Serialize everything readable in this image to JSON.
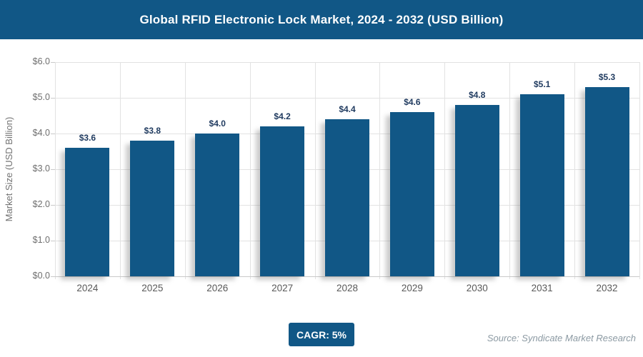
{
  "chart_data": {
    "type": "bar",
    "title": "Global RFID Electronic Lock Market, 2024 - 2032 (USD Billion)",
    "xlabel": "",
    "ylabel": "Market Size (USD Billion)",
    "categories": [
      "2024",
      "2025",
      "2026",
      "2027",
      "2028",
      "2029",
      "2030",
      "2031",
      "2032"
    ],
    "values": [
      3.6,
      3.8,
      4.0,
      4.2,
      4.4,
      4.6,
      4.8,
      5.1,
      5.3
    ],
    "value_labels": [
      "$3.6",
      "$3.8",
      "$4.0",
      "$4.2",
      "$4.4",
      "$4.6",
      "$4.8",
      "$5.1",
      "$5.3"
    ],
    "ylim": [
      0,
      6
    ],
    "ytick_labels": [
      "$0.0",
      "$1.0",
      "$2.0",
      "$3.0",
      "$4.0",
      "$5.0",
      "$6.0"
    ],
    "grid": "on",
    "legend": "none",
    "annotations": [
      "CAGR: 5%"
    ]
  },
  "footer": {
    "cagr_label": "CAGR: 5%",
    "source": "Source: Syndicate Market Research"
  },
  "colors": {
    "accent_blue": "#115786",
    "bar_fill": "#115786",
    "value_label": "#1f3a5f",
    "axis_text": "#6e6e6e",
    "category_text": "#595959",
    "gridline": "#e2e2e2",
    "source_text": "#8c9aa3"
  }
}
